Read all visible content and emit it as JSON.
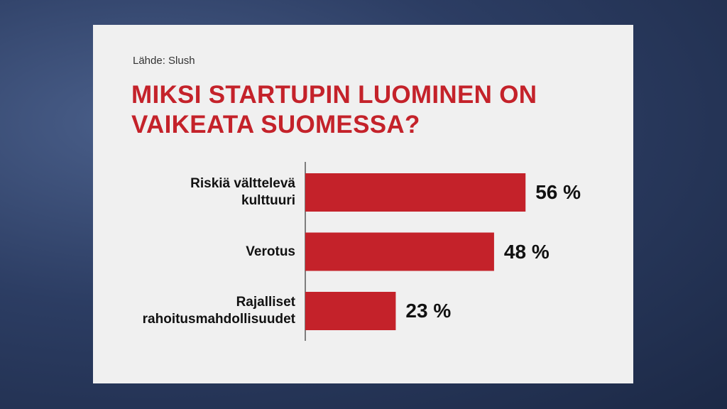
{
  "chart_data": {
    "type": "bar",
    "orientation": "horizontal",
    "source": "Lähde: Slush",
    "title": "MIKSI STARTUPIN LUOMINEN ON\nVAIKEATA SUOMESSA?",
    "categories": [
      "Riskiä välttelevä\nkulttuuri",
      "Verotus",
      "Rajalliset\nrahoitusmahdollisuudet"
    ],
    "values": [
      56,
      48,
      23
    ],
    "value_labels": [
      "56 %",
      "48 %",
      "23 %"
    ],
    "color": "#c4222a"
  }
}
